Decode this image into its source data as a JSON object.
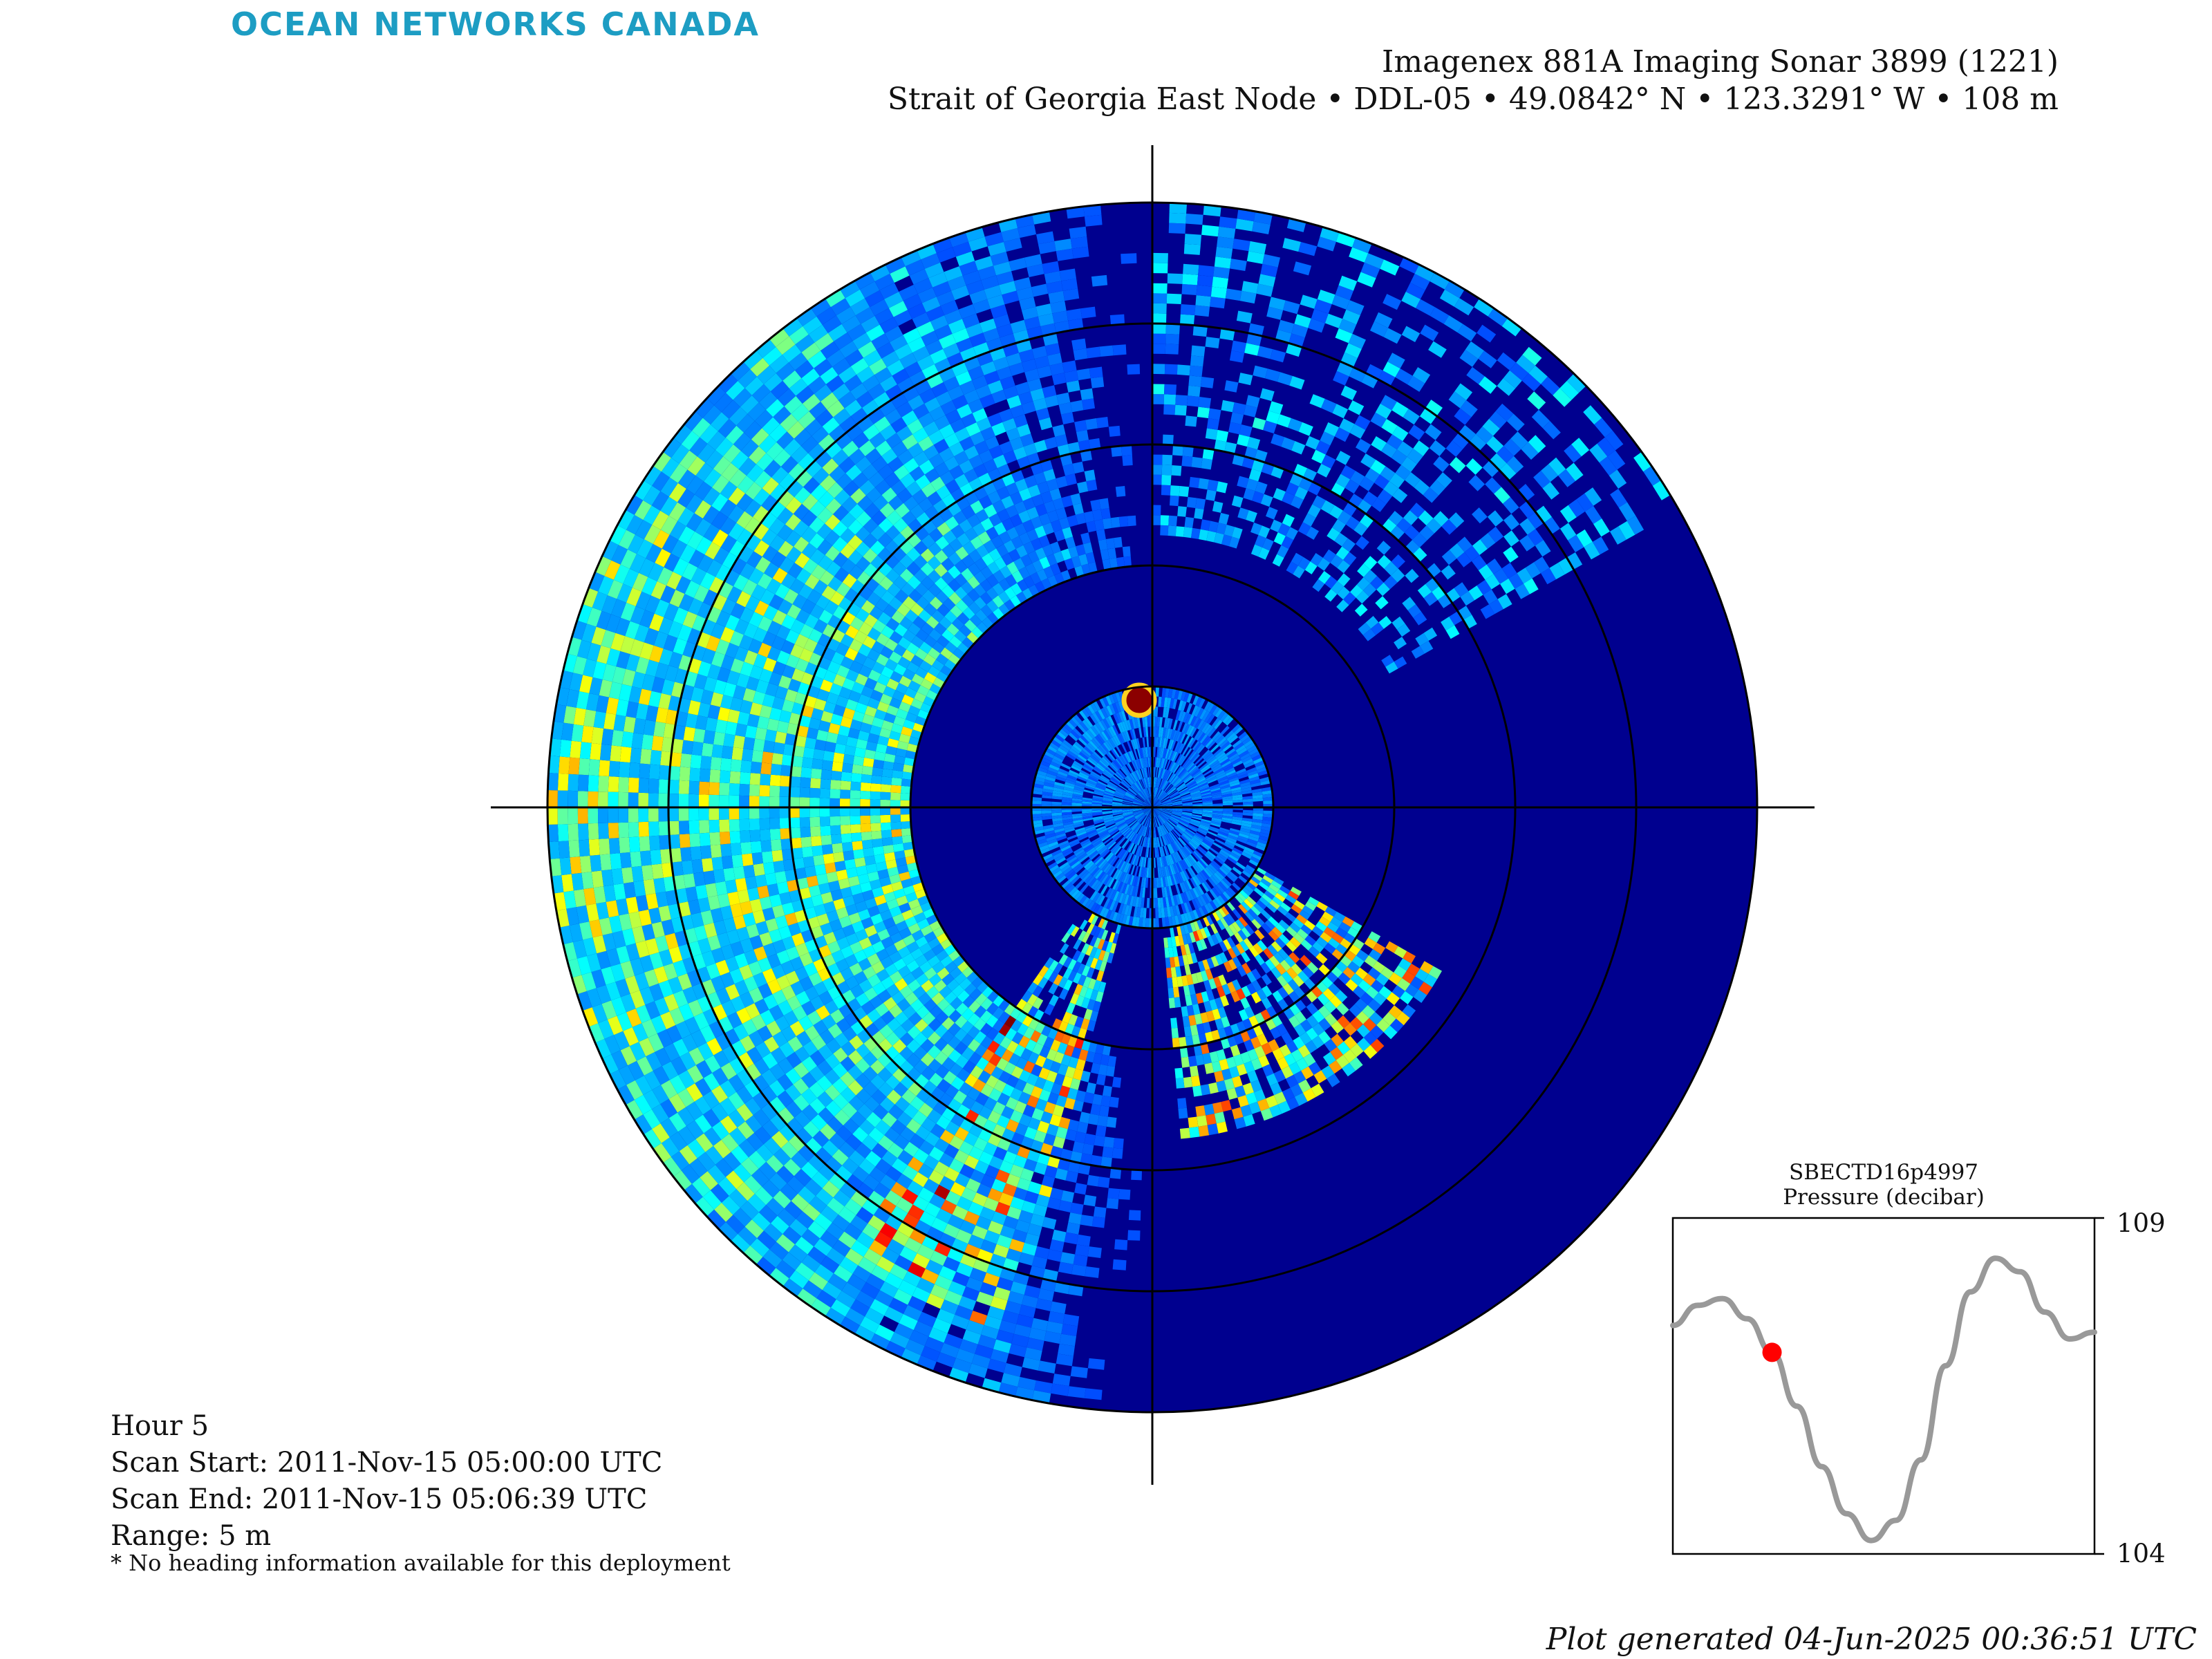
{
  "brand": {
    "logo_text": "OCEAN NETWORKS CANADA",
    "color": "#1d9dc3"
  },
  "header": {
    "title": "Imagenex 881A Imaging Sonar 3899 (1221)",
    "subtitle": "Strait of Georgia East Node • DDL-05 • 49.0842° N • 123.3291° W • 108 m"
  },
  "scan_info": {
    "hour": "Hour 5",
    "scan_start": "Scan Start: 2011-Nov-15 05:00:00 UTC",
    "scan_end": "Scan End: 2011-Nov-15 05:06:39 UTC",
    "range": "Range: 5 m",
    "note": "* No heading information available for this deployment"
  },
  "sonar": {
    "colormap": "jet",
    "background_color": "#00008f",
    "range_rings": 5,
    "crosshair": true
  },
  "pressure_inset": {
    "sensor": "SBECTD16p4997",
    "label": "Pressure (decibar)",
    "y_max": "109",
    "y_min": "104",
    "line_color": "#999999",
    "marker_color": "#ff0000",
    "values": [
      107.4,
      107.7,
      107.8,
      107.5,
      107.0,
      106.2,
      105.3,
      104.6,
      104.2,
      104.5,
      105.4,
      106.8,
      107.9,
      108.4,
      108.2,
      107.6,
      107.2,
      107.3
    ],
    "current_index": 4
  },
  "footer": {
    "generated": "Plot generated 04-Jun-2025 00:36:51 UTC"
  }
}
